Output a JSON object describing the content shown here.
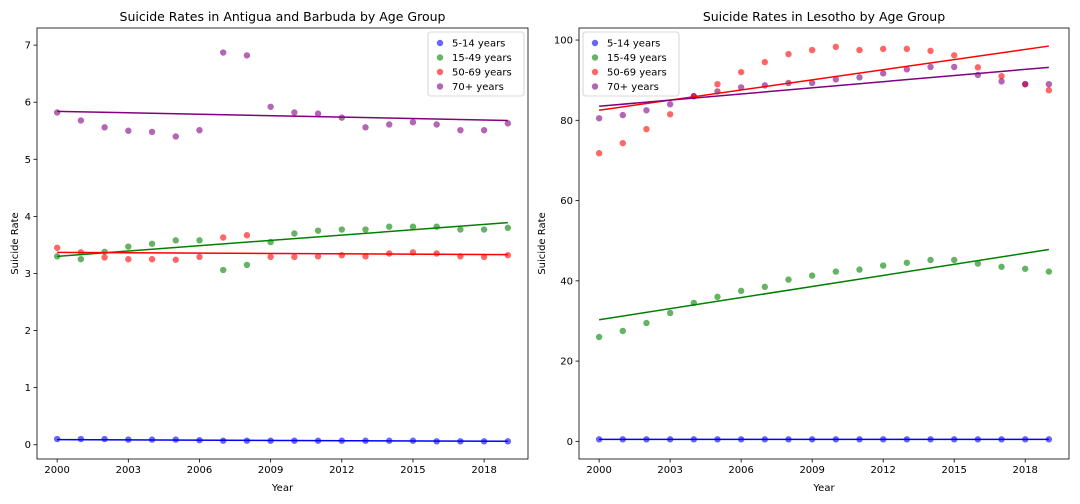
{
  "colors": {
    "5-14 years": "#0000ff",
    "15-49 years": "#008000",
    "50-69 years": "#ff0000",
    "70+ years": "#800080"
  },
  "chart_data": [
    {
      "type": "scatter",
      "title": "Suicide Rates in Antigua and Barbuda by Age Group",
      "xlabel": "Year",
      "ylabel": "Suicide Rate",
      "xlim": [
        1999.15,
        2019.85
      ],
      "ylim": [
        -0.25,
        7.3
      ],
      "xticks": [
        2000,
        2003,
        2006,
        2009,
        2012,
        2015,
        2018
      ],
      "yticks": [
        0,
        1,
        2,
        3,
        4,
        5,
        6,
        7
      ],
      "grid": false,
      "legend_position": "top-right",
      "x": [
        2000,
        2001,
        2002,
        2003,
        2004,
        2005,
        2006,
        2007,
        2008,
        2009,
        2010,
        2011,
        2012,
        2013,
        2014,
        2015,
        2016,
        2017,
        2018,
        2019
      ],
      "series": [
        {
          "name": "5-14 years",
          "values": [
            0.1,
            0.1,
            0.1,
            0.09,
            0.09,
            0.09,
            0.08,
            0.07,
            0.07,
            0.07,
            0.07,
            0.07,
            0.07,
            0.07,
            0.07,
            0.07,
            0.06,
            0.06,
            0.06,
            0.06
          ],
          "trend": [
            0.09,
            0.06
          ]
        },
        {
          "name": "15-49 years",
          "values": [
            3.3,
            3.25,
            3.38,
            3.47,
            3.52,
            3.58,
            3.58,
            3.06,
            3.15,
            3.55,
            3.7,
            3.75,
            3.77,
            3.77,
            3.82,
            3.82,
            3.82,
            3.77,
            3.77,
            3.8
          ],
          "trend": [
            3.3,
            3.89
          ]
        },
        {
          "name": "50-69 years",
          "values": [
            3.45,
            3.37,
            3.28,
            3.25,
            3.25,
            3.24,
            3.29,
            3.63,
            3.67,
            3.29,
            3.29,
            3.3,
            3.32,
            3.3,
            3.35,
            3.37,
            3.35,
            3.3,
            3.29,
            3.32
          ],
          "trend": [
            3.37,
            3.33
          ]
        },
        {
          "name": "70+ years",
          "values": [
            5.82,
            5.68,
            5.56,
            5.5,
            5.48,
            5.4,
            5.51,
            6.87,
            6.82,
            5.92,
            5.82,
            5.8,
            5.73,
            5.56,
            5.61,
            5.65,
            5.61,
            5.51,
            5.51,
            5.63
          ],
          "trend": [
            5.84,
            5.68
          ]
        }
      ]
    },
    {
      "type": "scatter",
      "title": "Suicide Rates in Lesotho by Age Group",
      "xlabel": "Year",
      "ylabel": "Suicide Rate",
      "xlim": [
        1999.15,
        2019.85
      ],
      "ylim": [
        -4.4,
        103
      ],
      "xticks": [
        2000,
        2003,
        2006,
        2009,
        2012,
        2015,
        2018
      ],
      "yticks": [
        0,
        20,
        40,
        60,
        80,
        100
      ],
      "grid": false,
      "legend_position": "top-left",
      "x": [
        2000,
        2001,
        2002,
        2003,
        2004,
        2005,
        2006,
        2007,
        2008,
        2009,
        2010,
        2011,
        2012,
        2013,
        2014,
        2015,
        2016,
        2017,
        2018,
        2019
      ],
      "series": [
        {
          "name": "5-14 years",
          "values": [
            0.5,
            0.5,
            0.5,
            0.5,
            0.5,
            0.5,
            0.5,
            0.5,
            0.5,
            0.5,
            0.5,
            0.5,
            0.5,
            0.5,
            0.5,
            0.5,
            0.5,
            0.5,
            0.5,
            0.5
          ],
          "trend": [
            0.5,
            0.5
          ]
        },
        {
          "name": "15-49 years",
          "values": [
            26.0,
            27.5,
            29.5,
            32.0,
            34.5,
            36.0,
            37.5,
            38.5,
            40.3,
            41.3,
            42.3,
            42.8,
            43.8,
            44.5,
            45.2,
            45.2,
            44.3,
            43.5,
            43.0,
            42.3
          ],
          "trend": [
            30.3,
            47.8
          ]
        },
        {
          "name": "50-69 years",
          "values": [
            71.8,
            74.3,
            77.8,
            81.5,
            86.0,
            89.0,
            92.0,
            94.5,
            96.5,
            97.5,
            98.3,
            97.5,
            97.8,
            97.8,
            97.3,
            96.2,
            93.2,
            91.0,
            89.0,
            87.5
          ],
          "trend": [
            82.5,
            98.5
          ]
        },
        {
          "name": "70+ years",
          "values": [
            80.5,
            81.3,
            82.5,
            84.0,
            86.0,
            87.2,
            88.2,
            88.7,
            89.3,
            89.3,
            90.2,
            90.7,
            91.7,
            92.7,
            93.3,
            93.3,
            91.3,
            89.7,
            89.0,
            89.0
          ],
          "trend": [
            83.5,
            93.2
          ]
        }
      ]
    }
  ]
}
